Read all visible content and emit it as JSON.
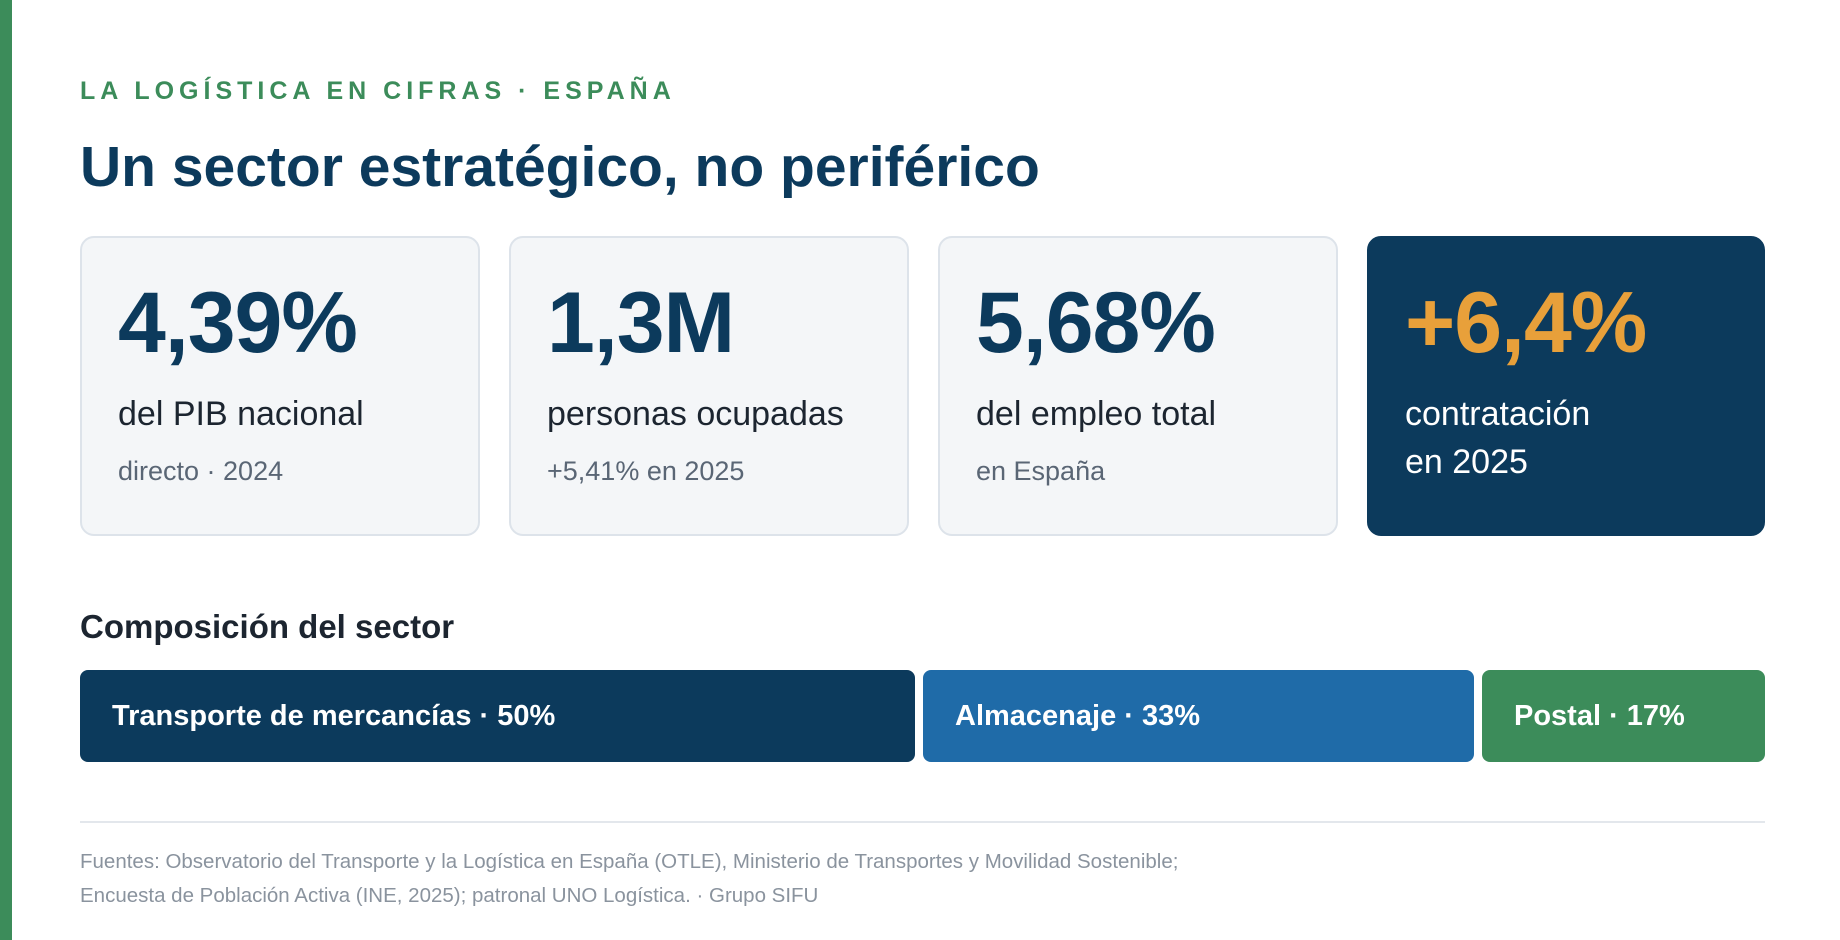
{
  "eyebrow": "LA LOGÍSTICA EN CIFRAS · ESPAÑA",
  "title": "Un sector estratégico, no periférico",
  "stats": [
    {
      "value": "4,39%",
      "label": "del PIB nacional",
      "note": "directo · 2024"
    },
    {
      "value": "1,3M",
      "label": "personas ocupadas",
      "note": "+5,41% en 2025"
    },
    {
      "value": "5,68%",
      "label": "del empleo total",
      "note": "en España"
    },
    {
      "value": "+6,4%",
      "label_line1": "contratación",
      "label_line2": "en 2025"
    }
  ],
  "composition_title": "Composición del sector",
  "chart_data": {
    "type": "bar",
    "orientation": "horizontal-stacked",
    "title": "Composición del sector",
    "categories": [
      "Transporte de mercancías",
      "Almacenaje",
      "Postal"
    ],
    "values": [
      50,
      33,
      17
    ],
    "labels": [
      "Transporte de mercancías · 50%",
      "Almacenaje · 33%",
      "Postal · 17%"
    ],
    "colors": [
      "#0c3a5c",
      "#1f6ba8",
      "#3c8c5a"
    ],
    "unit": "%"
  },
  "sources": {
    "line1": "Fuentes: Observatorio del Transporte y la Logística en España (OTLE), Ministerio de Transportes y Movilidad Sostenible;",
    "line2": "Encuesta de Población Activa (INE, 2025); patronal UNO Logística. · Grupo SIFU"
  },
  "colors": {
    "accent_green": "#3c8c5a",
    "navy": "#0c3a5c",
    "orange": "#e8a03a"
  }
}
